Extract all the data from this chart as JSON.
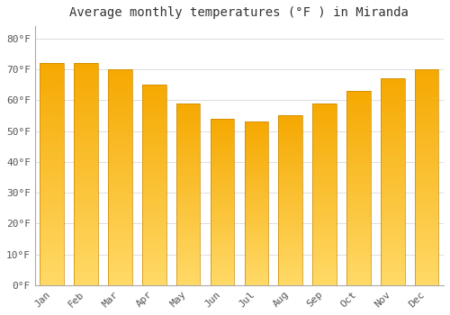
{
  "title": "Average monthly temperatures (°F ) in Miranda",
  "months": [
    "Jan",
    "Feb",
    "Mar",
    "Apr",
    "May",
    "Jun",
    "Jul",
    "Aug",
    "Sep",
    "Oct",
    "Nov",
    "Dec"
  ],
  "values": [
    72,
    72,
    70,
    65,
    59,
    54,
    53,
    55,
    59,
    63,
    67,
    70
  ],
  "bar_color_top": "#F5A800",
  "bar_color_bottom": "#FFD966",
  "yticks": [
    0,
    10,
    20,
    30,
    40,
    50,
    60,
    70,
    80
  ],
  "ytick_labels": [
    "0°F",
    "10°F",
    "20°F",
    "30°F",
    "40°F",
    "50°F",
    "60°F",
    "70°F",
    "80°F"
  ],
  "ylim": [
    0,
    84
  ],
  "background_color": "#FFFFFF",
  "grid_color": "#DDDDDD",
  "title_fontsize": 10,
  "tick_fontsize": 8,
  "bar_width": 0.7,
  "figsize": [
    5.0,
    3.5
  ],
  "dpi": 100
}
